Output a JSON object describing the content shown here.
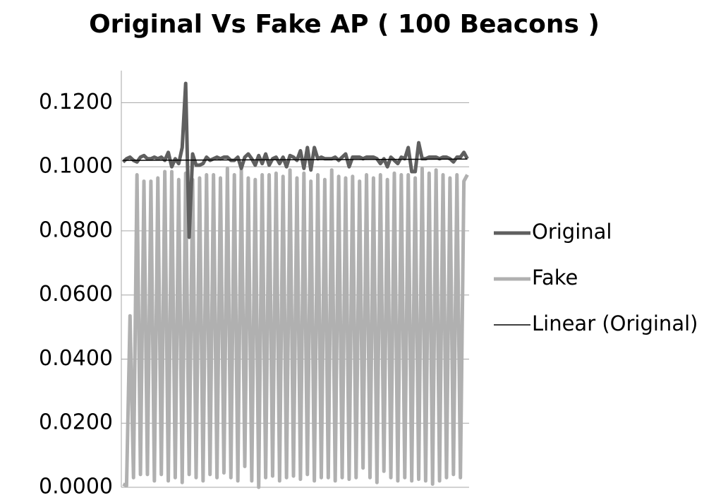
{
  "chart_data": {
    "type": "line",
    "title": "Original Vs Fake AP ( 100 Beacons )",
    "categories": [
      null,
      null,
      null,
      null,
      null,
      null,
      null,
      null,
      null,
      null,
      null,
      null,
      null,
      null,
      null,
      null,
      null,
      null,
      null,
      null,
      null,
      null,
      null,
      null,
      null,
      null,
      null,
      null,
      null,
      null,
      null,
      null,
      null,
      null,
      null,
      null,
      null,
      null,
      null,
      null,
      null,
      null,
      null,
      null,
      null,
      null,
      null,
      null,
      null,
      null,
      null,
      null,
      null,
      null,
      null,
      null,
      null,
      null,
      null,
      null,
      null,
      null,
      null,
      null,
      null,
      null,
      null,
      null,
      null,
      null,
      null,
      null,
      null,
      null,
      null,
      null,
      null,
      null,
      null,
      null,
      null,
      null,
      null,
      null,
      null,
      null,
      null,
      null,
      null,
      null,
      null,
      null,
      null,
      null,
      null,
      null,
      null,
      null,
      null,
      null
    ],
    "series": [
      {
        "name": "Original",
        "color": "#5f5f5f",
        "values": [
          0.1015,
          0.1025,
          0.103,
          0.102,
          0.1015,
          0.103,
          0.1035,
          0.1025,
          0.1025,
          0.103,
          0.1025,
          0.103,
          0.102,
          0.1045,
          0.1,
          0.1025,
          0.101,
          0.106,
          0.126,
          0.078,
          0.104,
          0.1005,
          0.1005,
          0.101,
          0.103,
          0.102,
          0.1025,
          0.103,
          0.1025,
          0.103,
          0.103,
          0.102,
          0.102,
          0.103,
          0.0995,
          0.103,
          0.104,
          0.1025,
          0.1005,
          0.1035,
          0.101,
          0.104,
          0.1005,
          0.1025,
          0.103,
          0.101,
          0.103,
          0.1,
          0.1035,
          0.103,
          0.102,
          0.105,
          0.0995,
          0.106,
          0.099,
          0.106,
          0.1025,
          0.103,
          0.1025,
          0.1025,
          0.1025,
          0.103,
          0.102,
          0.103,
          0.104,
          0.1,
          0.103,
          0.103,
          0.103,
          0.1025,
          0.103,
          0.103,
          0.103,
          0.1025,
          0.101,
          0.1025,
          0.1,
          0.103,
          0.102,
          0.101,
          0.103,
          0.1025,
          0.106,
          0.0985,
          0.0985,
          0.1075,
          0.1025,
          0.1025,
          0.103,
          0.103,
          0.103,
          0.1025,
          0.103,
          0.103,
          0.1025,
          0.1015,
          0.103,
          0.103,
          0.1045,
          0.1025
        ]
      },
      {
        "name": "Fake",
        "color": "#b0b0b0",
        "values": [
          0.001,
          0.0005,
          0.0535,
          0.003,
          0.0975,
          0.004,
          0.0955,
          0.004,
          0.0955,
          0.002,
          0.0965,
          0.004,
          0.0985,
          0.002,
          0.0985,
          0.003,
          0.096,
          0.0015,
          0.098,
          0.004,
          0.096,
          0.003,
          0.0965,
          0.002,
          0.0975,
          0.004,
          0.0975,
          0.003,
          0.0965,
          0.0045,
          0.0995,
          0.003,
          0.0975,
          0.002,
          0.099,
          0.0065,
          0.0965,
          0.002,
          0.096,
          0.0,
          0.0975,
          0.003,
          0.0975,
          0.0035,
          0.098,
          0.002,
          0.097,
          0.003,
          0.099,
          0.0035,
          0.0965,
          0.0025,
          0.098,
          0.004,
          0.0955,
          0.002,
          0.0975,
          0.003,
          0.096,
          0.003,
          0.099,
          0.002,
          0.097,
          0.003,
          0.0965,
          0.0025,
          0.097,
          0.003,
          0.0955,
          0.006,
          0.0975,
          0.003,
          0.0965,
          0.0015,
          0.0975,
          0.005,
          0.096,
          0.003,
          0.098,
          0.002,
          0.0975,
          0.003,
          0.0975,
          0.002,
          0.0965,
          0.0025,
          0.0995,
          0.002,
          0.098,
          0.001,
          0.099,
          0.002,
          0.0975,
          0.003,
          0.0965,
          0.004,
          0.0975,
          0.003,
          0.0955,
          0.0975
        ]
      }
    ],
    "trendline": {
      "name": "Linear (Original)",
      "color": "#000000",
      "values": [
        0.102,
        0.1024
      ]
    },
    "ylim": [
      0,
      0.13
    ],
    "yticks": [
      {
        "value": 0,
        "label": "0.0000"
      },
      {
        "value": 0.02,
        "label": "0.0200"
      },
      {
        "value": 0.04,
        "label": "0.0400"
      },
      {
        "value": 0.06,
        "label": "0.0600"
      },
      {
        "value": 0.08,
        "label": "0.0800"
      },
      {
        "value": 0.1,
        "label": "0.1000"
      },
      {
        "value": 0.12,
        "label": "0.1200"
      }
    ],
    "grid": true,
    "legend": "right"
  }
}
